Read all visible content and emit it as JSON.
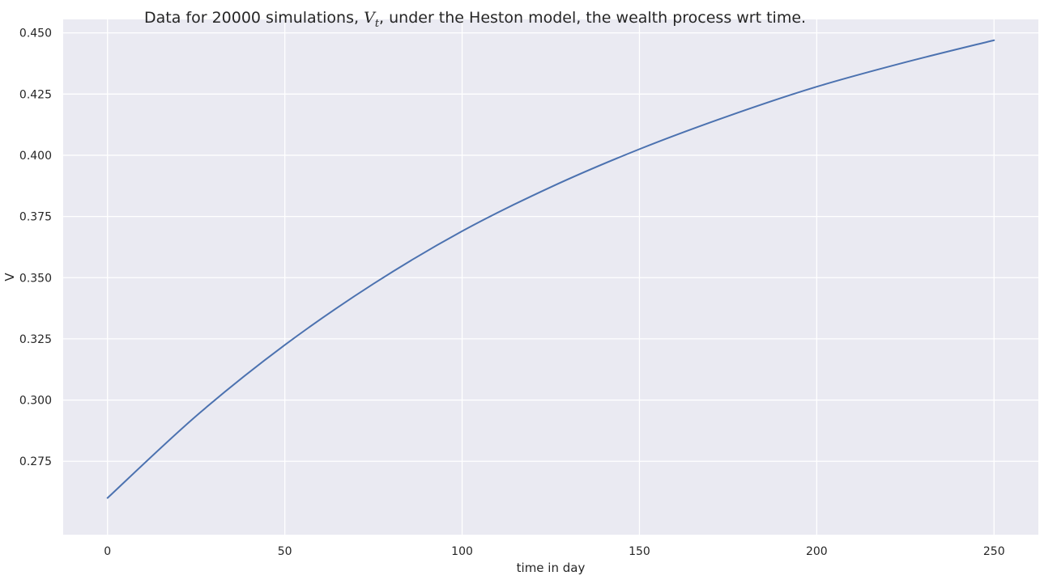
{
  "chart_data": {
    "type": "line",
    "title": {
      "prefix": "Data for 20000 simulations, ",
      "math_main": "V",
      "math_sub": "t",
      "suffix": ", under the Heston model, the wealth process wrt time."
    },
    "xlabel": "time in day",
    "ylabel": "V",
    "xlim": [
      -12.5,
      262.5
    ],
    "ylim": [
      0.245,
      0.4555
    ],
    "xticks": [
      0,
      50,
      100,
      150,
      200,
      250
    ],
    "yticks": [
      0.275,
      0.3,
      0.325,
      0.35,
      0.375,
      0.4,
      0.425,
      0.45
    ],
    "ytick_labels": [
      "0.275",
      "0.300",
      "0.325",
      "0.350",
      "0.375",
      "0.400",
      "0.425",
      "0.450"
    ],
    "grid": true,
    "background_color": "#EAEAF2",
    "grid_color": "#FFFFFF",
    "series": [
      {
        "color": "#4C72B0",
        "x": [
          0,
          25,
          50,
          75,
          100,
          125,
          150,
          175,
          200,
          225,
          250
        ],
        "y": [
          0.26,
          0.2935,
          0.3225,
          0.3475,
          0.369,
          0.387,
          0.4025,
          0.416,
          0.428,
          0.438,
          0.447
        ]
      }
    ]
  }
}
